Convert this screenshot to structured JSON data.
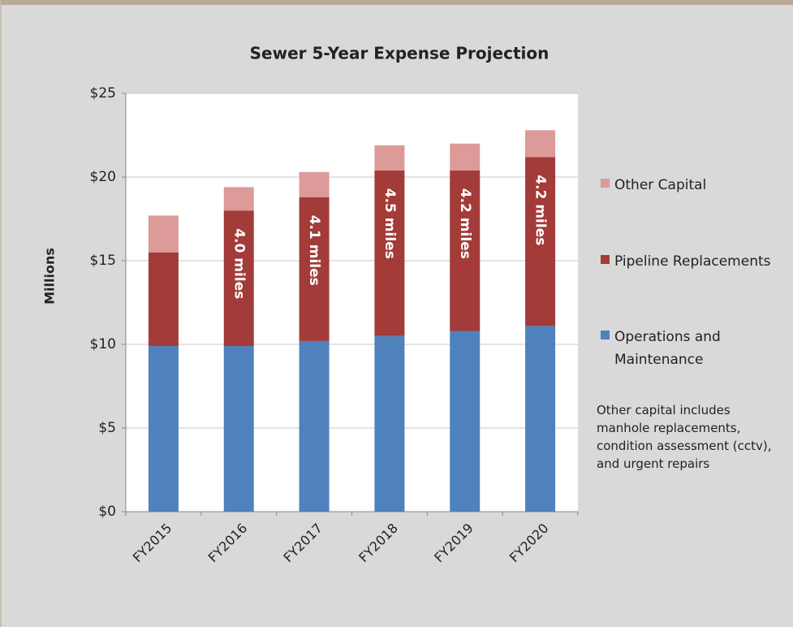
{
  "chart_data": {
    "type": "stacked_bar",
    "title": "Sewer 5-Year Expense Projection",
    "y_label": "Millions",
    "categories": [
      "FY2015",
      "FY2016",
      "FY2017",
      "FY2018",
      "FY2019",
      "FY2020"
    ],
    "series": [
      {
        "name": "Operations and Maintenance",
        "color": "#4f81bd",
        "values": [
          9.9,
          9.9,
          10.2,
          10.5,
          10.8,
          11.1
        ]
      },
      {
        "name": "Pipeline Replacements",
        "color": "#a33b39",
        "values": [
          5.6,
          8.1,
          8.6,
          9.9,
          9.6,
          10.1
        ]
      },
      {
        "name": "Other Capital",
        "color": "#dc9a99",
        "values": [
          2.2,
          1.4,
          1.5,
          1.5,
          1.6,
          1.6
        ]
      }
    ],
    "bar_annotations": [
      null,
      "4.0 miles",
      "4.1 miles",
      "4.5 miles",
      "4.2 miles",
      "4.2 miles"
    ],
    "note": "Other capital includes manhole replacements, condition assessment (cctv), and urgent repairs",
    "ylim": [
      0,
      25
    ],
    "yticks": [
      {
        "value": 0,
        "label": "$0"
      },
      {
        "value": 5,
        "label": "$5"
      },
      {
        "value": 10,
        "label": "$10"
      },
      {
        "value": 15,
        "label": "$15"
      },
      {
        "value": 20,
        "label": "$20"
      },
      {
        "value": 25,
        "label": "$25"
      }
    ],
    "grid": true
  }
}
